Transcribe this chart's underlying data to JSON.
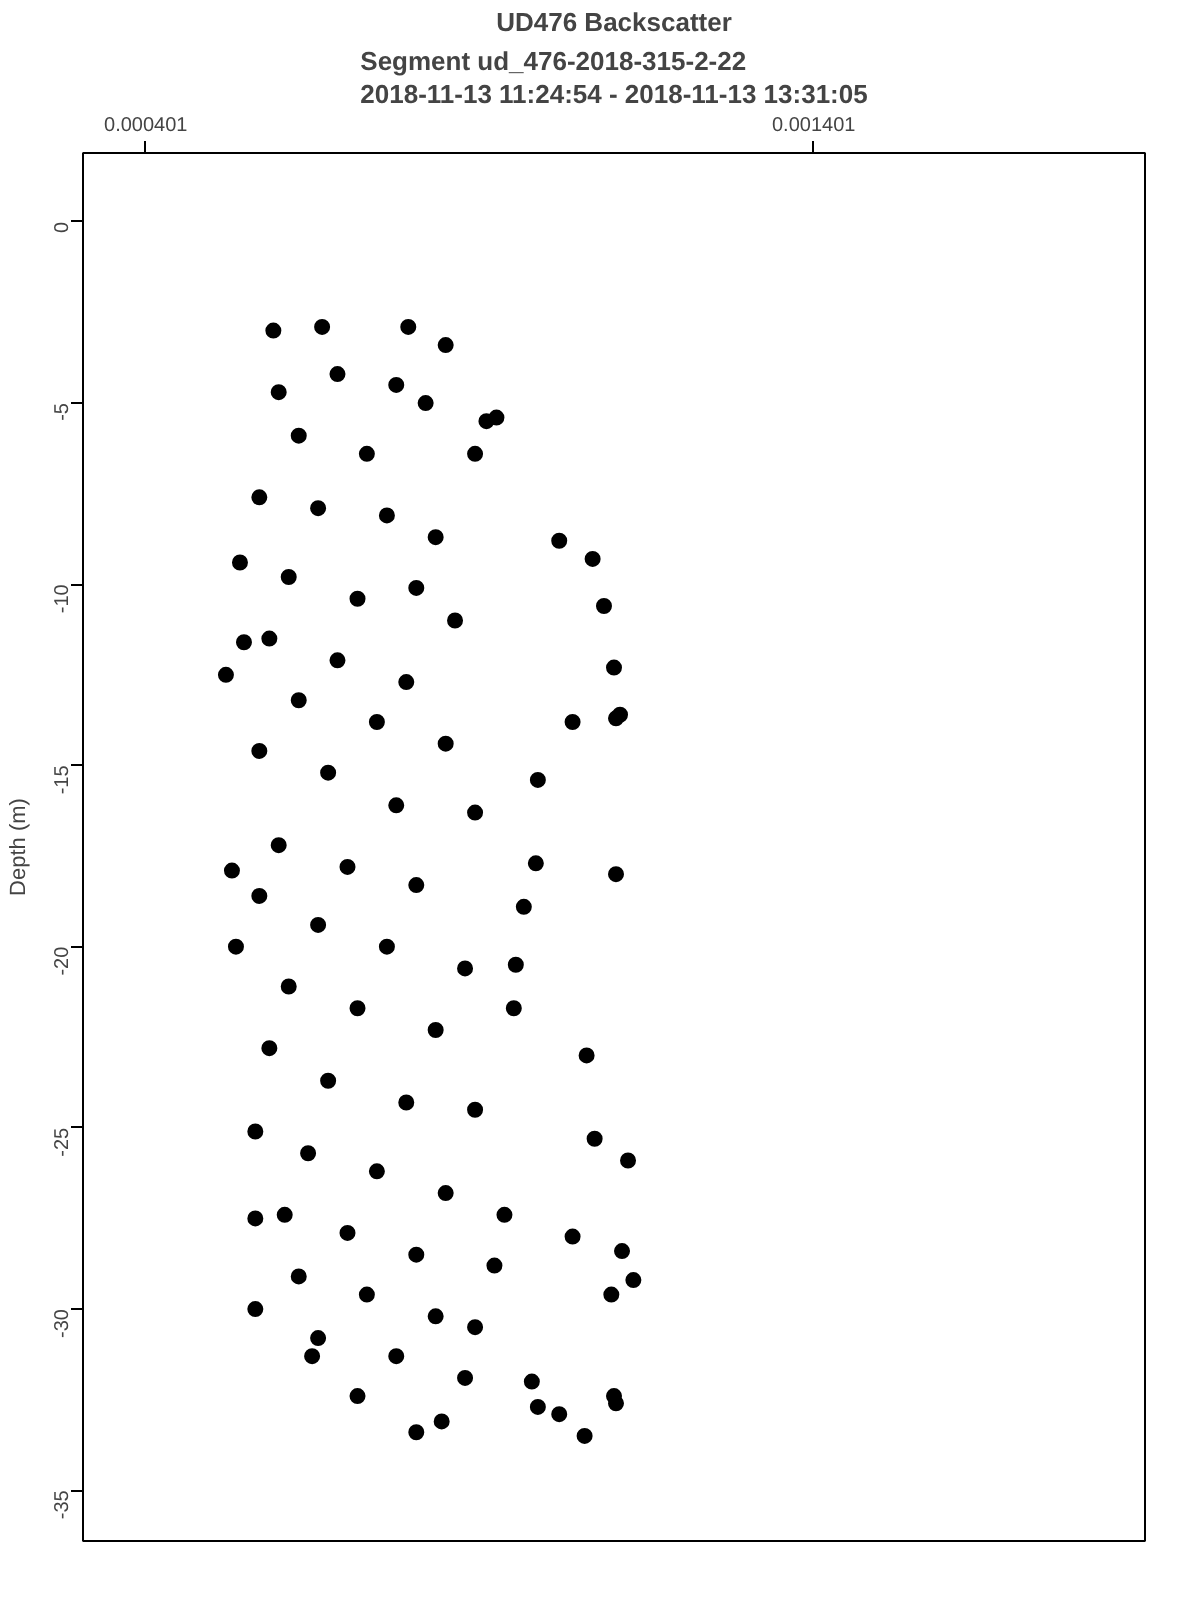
{
  "chart_data": {
    "type": "scatter",
    "title": "UD476 Backscatter",
    "subtitle": "Segment ud_476-2018-315-2-22\n2018-11-13 11:24:54 - 2018-11-13 13:31:05",
    "ylabel": "Depth (m)",
    "xlim": [
      0.000307,
      0.001897
    ],
    "ylim": [
      -36.4,
      1.9
    ],
    "xticks": [
      {
        "value": 0.000401,
        "label": "0.000401"
      },
      {
        "value": 0.001401,
        "label": "0.001401"
      }
    ],
    "yticks": [
      0,
      -5,
      -10,
      -15,
      -20,
      -25,
      -30,
      -35
    ],
    "grid": false,
    "marker": "circle",
    "series": [
      {
        "color": "#000000",
        "x": [
          0.000592,
          0.000665,
          0.000794,
          0.00085,
          0.0006,
          0.000688,
          0.000776,
          0.00082,
          0.00063,
          0.000732,
          0.000571,
          0.000659,
          0.000762,
          0.000835,
          0.000542,
          0.000615,
          0.000718,
          0.000806,
          0.000864,
          0.000586,
          0.000688,
          0.000791,
          0.000548,
          0.000521,
          0.00063,
          0.000747,
          0.00085,
          0.000571,
          0.000674,
          0.000776,
          0.000894,
          0.0006,
          0.000703,
          0.000806,
          0.000571,
          0.00053,
          0.000536,
          0.000659,
          0.000762,
          0.000879,
          0.000615,
          0.000718,
          0.000835,
          0.000586,
          0.000674,
          0.000791,
          0.000894,
          0.000565,
          0.000644,
          0.000747,
          0.00085,
          0.000609,
          0.000703,
          0.000806,
          0.000565,
          0.000938,
          0.00063,
          0.000732,
          0.000835,
          0.000565,
          0.000659,
          0.000776,
          0.000879,
          0.000718,
          0.000806,
          0.00065,
          0.000844,
          0.000894,
          0.000926,
          0.000911,
          0.000894,
          0.00102,
          0.00107,
          0.001087,
          0.001102,
          0.001105,
          0.001111,
          0.00104,
          0.000988,
          0.001105,
          0.000985,
          0.000967,
          0.000955,
          0.000952,
          0.001061,
          0.001123,
          0.001073,
          0.001114,
          0.001131,
          0.001098,
          0.00104,
          0.000979,
          0.000988,
          0.001102,
          0.001058,
          0.00102,
          0.001105,
          0.000923
        ],
        "values": [
          -3.0,
          -2.9,
          -2.9,
          -3.4,
          -4.7,
          -4.2,
          -4.5,
          -5.0,
          -5.9,
          -6.4,
          -7.6,
          -7.9,
          -8.1,
          -8.7,
          -9.4,
          -9.8,
          -10.4,
          -10.1,
          -11.0,
          -11.5,
          -12.1,
          -12.7,
          -11.6,
          -12.5,
          -13.2,
          -13.8,
          -14.4,
          -14.6,
          -15.2,
          -16.1,
          -16.3,
          -17.2,
          -17.8,
          -18.3,
          -18.6,
          -17.9,
          -20.0,
          -19.4,
          -20.0,
          -20.6,
          -21.1,
          -21.7,
          -22.3,
          -22.8,
          -23.7,
          -24.3,
          -24.5,
          -25.1,
          -25.7,
          -26.2,
          -26.8,
          -27.4,
          -27.9,
          -28.5,
          -27.5,
          -27.4,
          -29.1,
          -29.6,
          -30.2,
          -30.0,
          -30.8,
          -31.3,
          -31.9,
          -32.4,
          -33.4,
          -31.3,
          -33.1,
          -30.5,
          -5.4,
          -5.5,
          -6.4,
          -8.8,
          -9.3,
          -10.6,
          -12.3,
          -13.7,
          -13.6,
          -13.8,
          -15.4,
          -18.0,
          -17.7,
          -18.9,
          -20.5,
          -21.7,
          -23.0,
          -25.9,
          -25.3,
          -28.4,
          -29.2,
          -29.6,
          -28.0,
          -32.0,
          -32.7,
          -32.4,
          -33.5,
          -32.9,
          -32.6,
          -28.8
        ]
      }
    ]
  }
}
